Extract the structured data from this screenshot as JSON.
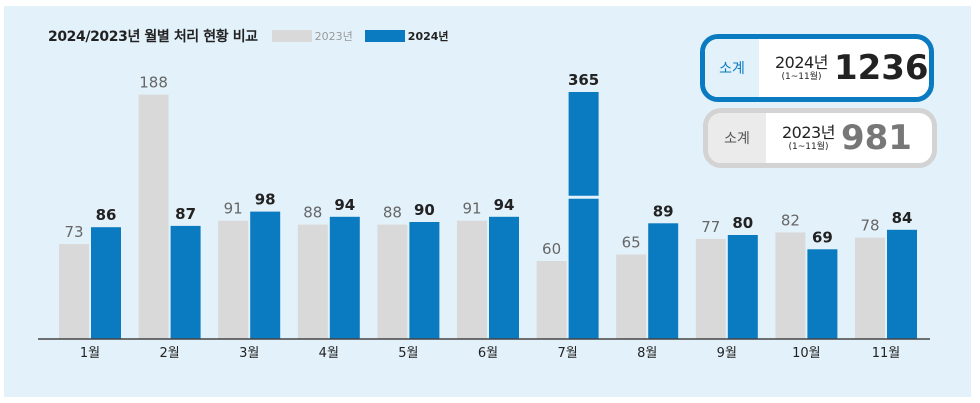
{
  "chart_data": {
    "type": "bar",
    "title": "2024/2023년 월별 처리 현황 비교",
    "categories": [
      "1월",
      "2월",
      "3월",
      "4월",
      "5월",
      "6월",
      "7월",
      "8월",
      "9월",
      "10월",
      "11월"
    ],
    "series": [
      {
        "name": "2023년",
        "values": [
          73,
          188,
          91,
          88,
          88,
          91,
          60,
          65,
          77,
          82,
          78
        ],
        "color": "#d9d9d9"
      },
      {
        "name": "2024년",
        "values": [
          86,
          87,
          98,
          94,
          90,
          94,
          365,
          89,
          80,
          69,
          84
        ],
        "color": "#0a7bc1"
      }
    ],
    "axis_break": true,
    "grid": false,
    "legend_position": "top-left"
  },
  "summary": {
    "y2024": {
      "tag": "소계",
      "year": "2024년",
      "range": "(1~11월)",
      "total": "1236"
    },
    "y2023": {
      "tag": "소계",
      "year": "2023년",
      "range": "(1~11월)",
      "total": "981"
    }
  }
}
